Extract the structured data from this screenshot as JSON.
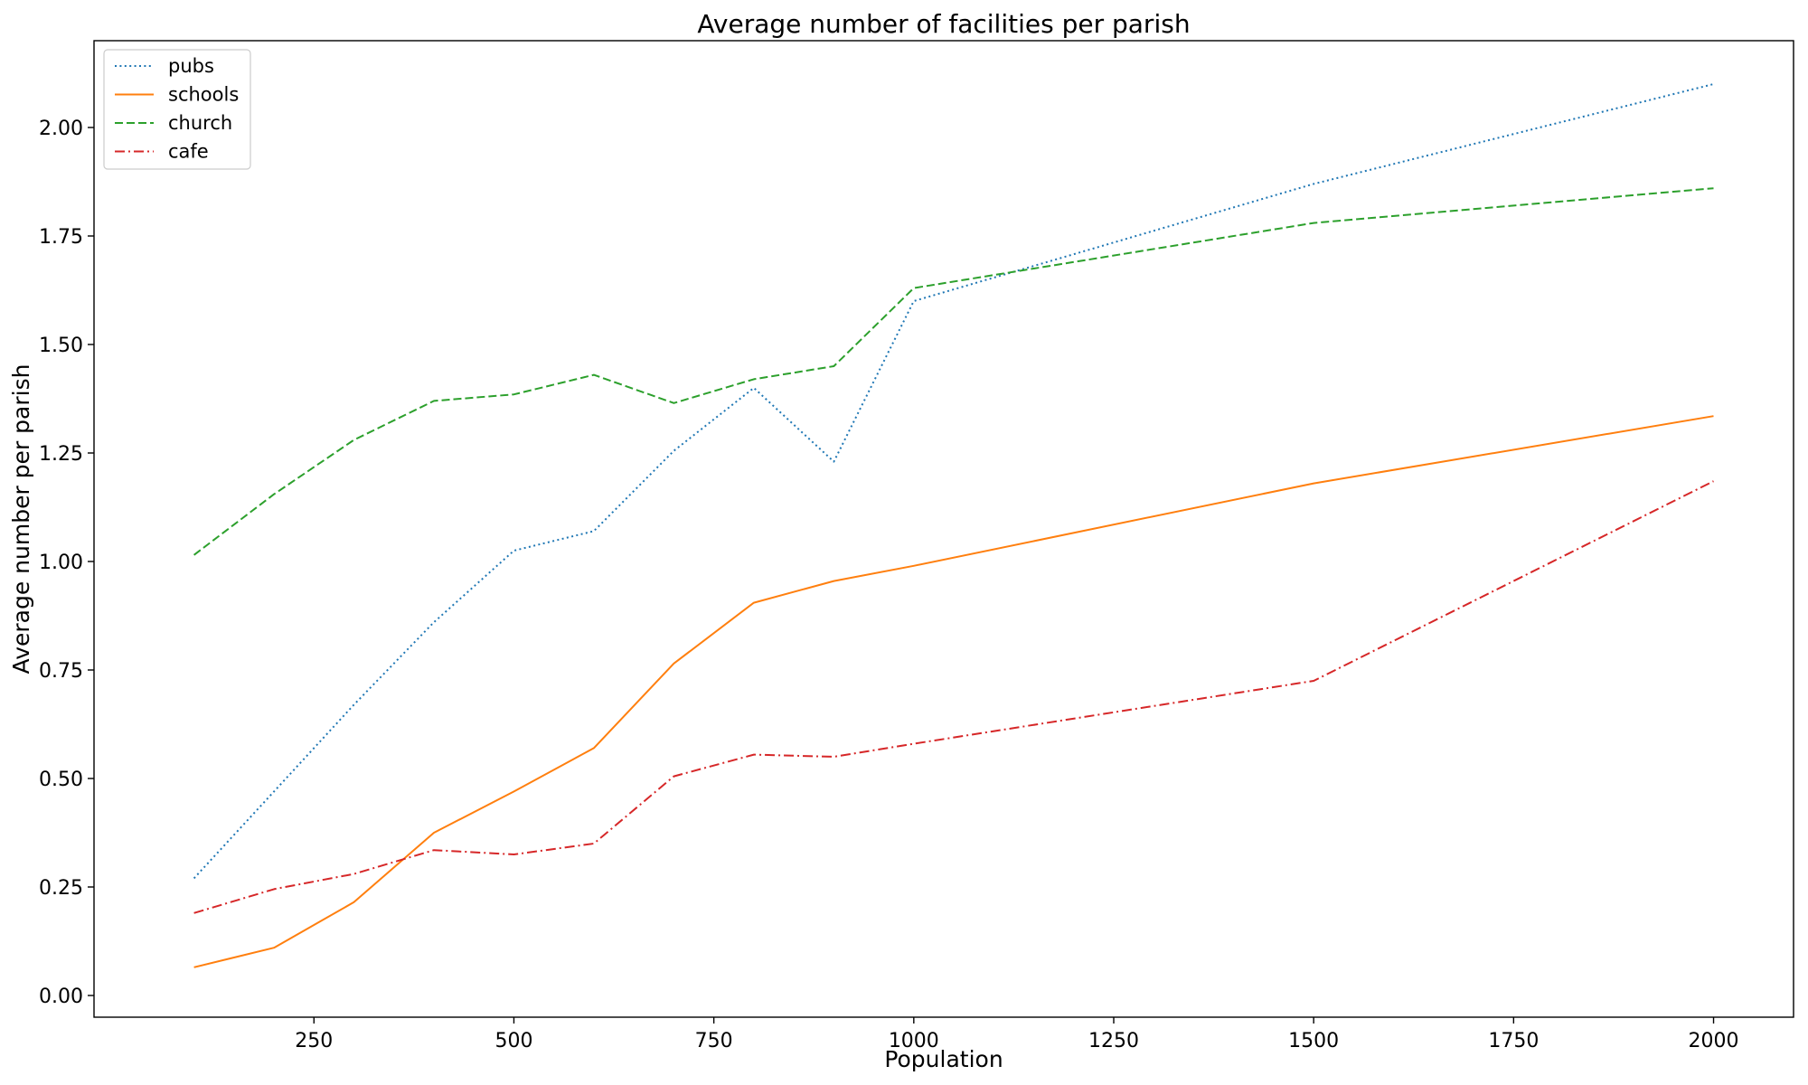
{
  "chart_data": {
    "type": "line",
    "title": "Average number of facilities per parish",
    "xlabel": "Population",
    "ylabel": "Average number per parish",
    "x": [
      100,
      200,
      300,
      400,
      500,
      600,
      700,
      800,
      900,
      1000,
      1500,
      2000
    ],
    "xlim": [
      -25,
      2100
    ],
    "ylim": [
      -0.05,
      2.2
    ],
    "xticks": [
      250,
      500,
      750,
      1000,
      1250,
      1500,
      1750,
      2000
    ],
    "xtick_labels": [
      "250",
      "500",
      "750",
      "1000",
      "1250",
      "1500",
      "1750",
      "2000"
    ],
    "yticks": [
      0,
      0.25,
      0.5,
      0.75,
      1.0,
      1.25,
      1.5,
      1.75,
      2.0
    ],
    "ytick_labels": [
      "0.00",
      "0.25",
      "0.50",
      "0.75",
      "1.00",
      "1.25",
      "1.50",
      "1.75",
      "2.00"
    ],
    "grid": false,
    "legend_position": "top-left",
    "series": [
      {
        "name": "pubs",
        "color": "#1f77b4",
        "linestyle": "dotted",
        "values": [
          0.27,
          0.47,
          0.67,
          0.86,
          1.025,
          1.07,
          1.255,
          1.4,
          1.23,
          1.6,
          1.87,
          2.1
        ]
      },
      {
        "name": "schools",
        "color": "#ff7f0e",
        "linestyle": "solid",
        "values": [
          0.065,
          0.11,
          0.215,
          0.375,
          0.47,
          0.57,
          0.765,
          0.905,
          0.955,
          0.99,
          1.18,
          1.335
        ]
      },
      {
        "name": "church",
        "color": "#2ca02c",
        "linestyle": "dashed",
        "values": [
          1.015,
          1.155,
          1.28,
          1.37,
          1.385,
          1.43,
          1.365,
          1.42,
          1.45,
          1.63,
          1.78,
          1.86
        ]
      },
      {
        "name": "cafe",
        "color": "#d62728",
        "linestyle": "dashdot",
        "values": [
          0.19,
          0.245,
          0.28,
          0.335,
          0.325,
          0.35,
          0.505,
          0.555,
          0.55,
          0.58,
          0.725,
          1.185
        ]
      }
    ]
  }
}
